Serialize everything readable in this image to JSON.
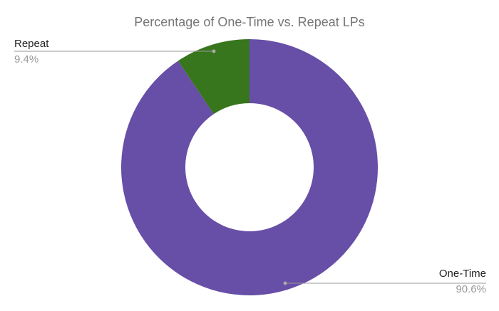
{
  "chart_data": {
    "type": "donut",
    "title": "Percentage of One-Time vs. Repeat LPs",
    "categories": [
      "One-Time",
      "Repeat"
    ],
    "values": [
      90.6,
      9.4
    ],
    "value_labels": [
      "90.6%",
      "9.4%"
    ],
    "colors": [
      "#674ea7",
      "#38761d"
    ]
  }
}
